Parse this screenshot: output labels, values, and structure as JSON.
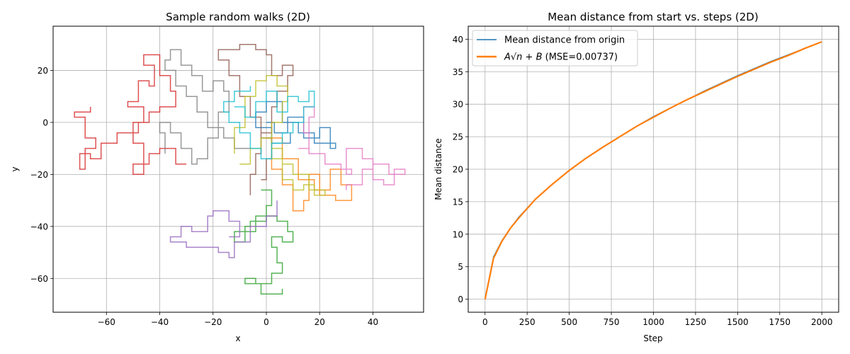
{
  "chart_data": [
    {
      "type": "line",
      "title": "Sample random walks (2D)",
      "xlabel": "x",
      "ylabel": "y",
      "xlim": [
        -80,
        59
      ],
      "ylim": [
        -73,
        37
      ],
      "xticks": [
        -60,
        -40,
        -20,
        0,
        20,
        40
      ],
      "yticks": [
        -60,
        -40,
        -20,
        0,
        20
      ],
      "grid": true,
      "series": [
        {
          "color": "#1f77b4",
          "path": [
            [
              0,
              0
            ],
            [
              3,
              -4
            ],
            [
              8,
              2
            ],
            [
              14,
              -6
            ],
            [
              20,
              -2
            ],
            [
              24,
              -10
            ],
            [
              26,
              -8
            ],
            [
              18,
              -4
            ],
            [
              12,
              0
            ],
            [
              6,
              8
            ],
            [
              0,
              4
            ],
            [
              -4,
              -2
            ],
            [
              2,
              -8
            ],
            [
              9,
              -4
            ]
          ]
        },
        {
          "color": "#ff7f0e",
          "path": [
            [
              0,
              -6
            ],
            [
              6,
              -14
            ],
            [
              12,
              -22
            ],
            [
              18,
              -26
            ],
            [
              24,
              -18
            ],
            [
              28,
              -24
            ],
            [
              32,
              -30
            ],
            [
              26,
              -28
            ],
            [
              20,
              -20
            ],
            [
              16,
              -30
            ],
            [
              14,
              -34
            ],
            [
              10,
              -24
            ],
            [
              6,
              -18
            ],
            [
              2,
              -12
            ]
          ]
        },
        {
          "color": "#2ca02c",
          "path": [
            [
              -2,
              -26
            ],
            [
              2,
              -32
            ],
            [
              0,
              -38
            ],
            [
              -6,
              -40
            ],
            [
              -8,
              -46
            ],
            [
              -12,
              -42
            ],
            [
              -4,
              -36
            ],
            [
              4,
              -38
            ],
            [
              8,
              -42
            ],
            [
              10,
              -46
            ],
            [
              6,
              -44
            ],
            [
              2,
              -48
            ],
            [
              4,
              -54
            ],
            [
              6,
              -58
            ],
            [
              2,
              -62
            ],
            [
              -4,
              -60
            ],
            [
              -8,
              -62
            ],
            [
              -2,
              -66
            ],
            [
              4,
              -66
            ],
            [
              6,
              -64
            ]
          ]
        },
        {
          "color": "#d62728",
          "path": [
            [
              -30,
              -16
            ],
            [
              -34,
              -10
            ],
            [
              -40,
              -12
            ],
            [
              -44,
              -16
            ],
            [
              -50,
              -20
            ],
            [
              -46,
              -8
            ],
            [
              -50,
              0
            ],
            [
              -46,
              6
            ],
            [
              -52,
              8
            ],
            [
              -48,
              16
            ],
            [
              -44,
              14
            ],
            [
              -42,
              22
            ],
            [
              -46,
              26
            ],
            [
              -40,
              18
            ],
            [
              -36,
              12
            ],
            [
              -34,
              6
            ],
            [
              -40,
              4
            ],
            [
              -44,
              0
            ],
            [
              -48,
              -4
            ],
            [
              -56,
              -8
            ],
            [
              -62,
              -14
            ],
            [
              -66,
              -12
            ],
            [
              -70,
              -18
            ],
            [
              -68,
              -10
            ],
            [
              -64,
              -6
            ],
            [
              -68,
              2
            ],
            [
              -72,
              4
            ],
            [
              -66,
              6
            ]
          ]
        },
        {
          "color": "#9467bd",
          "path": [
            [
              -14,
              -44
            ],
            [
              -10,
              -38
            ],
            [
              -14,
              -34
            ],
            [
              -20,
              -36
            ],
            [
              -22,
              -42
            ],
            [
              -28,
              -40
            ],
            [
              -32,
              -44
            ],
            [
              -36,
              -46
            ],
            [
              -30,
              -48
            ],
            [
              -24,
              -48
            ],
            [
              -18,
              -50
            ],
            [
              -14,
              -52
            ],
            [
              -12,
              -46
            ],
            [
              -6,
              -40
            ],
            [
              0,
              -36
            ],
            [
              4,
              -30
            ]
          ]
        },
        {
          "color": "#8c564b",
          "path": [
            [
              -2,
              -22
            ],
            [
              0,
              -14
            ],
            [
              2,
              -6
            ],
            [
              -2,
              2
            ],
            [
              -6,
              10
            ],
            [
              -10,
              18
            ],
            [
              -14,
              24
            ],
            [
              -18,
              28
            ],
            [
              -10,
              30
            ],
            [
              -4,
              28
            ],
            [
              0,
              26
            ],
            [
              2,
              18
            ],
            [
              6,
              22
            ],
            [
              10,
              18
            ],
            [
              8,
              12
            ],
            [
              4,
              6
            ],
            [
              2,
              -4
            ],
            [
              -2,
              -12
            ],
            [
              -4,
              -20
            ],
            [
              -6,
              -28
            ]
          ]
        },
        {
          "color": "#e377c2",
          "path": [
            [
              12,
              -10
            ],
            [
              16,
              -4
            ],
            [
              14,
              6
            ],
            [
              18,
              2
            ],
            [
              16,
              -12
            ],
            [
              22,
              -16
            ],
            [
              28,
              -18
            ],
            [
              32,
              -20
            ],
            [
              30,
              -10
            ],
            [
              36,
              -14
            ],
            [
              40,
              -22
            ],
            [
              44,
              -24
            ],
            [
              48,
              -18
            ],
            [
              52,
              -20
            ],
            [
              46,
              -16
            ],
            [
              40,
              -18
            ],
            [
              36,
              -24
            ],
            [
              30,
              -26
            ]
          ]
        },
        {
          "color": "#7f7f7f",
          "path": [
            [
              -6,
              -10
            ],
            [
              -12,
              -6
            ],
            [
              -16,
              -2
            ],
            [
              -22,
              4
            ],
            [
              -26,
              10
            ],
            [
              -30,
              14
            ],
            [
              -34,
              20
            ],
            [
              -38,
              24
            ],
            [
              -36,
              28
            ],
            [
              -32,
              22
            ],
            [
              -28,
              18
            ],
            [
              -24,
              12
            ],
            [
              -20,
              16
            ],
            [
              -16,
              12
            ],
            [
              -14,
              4
            ],
            [
              -18,
              -6
            ],
            [
              -22,
              -14
            ],
            [
              -26,
              -16
            ],
            [
              -28,
              -10
            ],
            [
              -32,
              -4
            ],
            [
              -36,
              0
            ],
            [
              -40,
              -4
            ],
            [
              -38,
              -12
            ]
          ]
        },
        {
          "color": "#bcbd22",
          "path": [
            [
              -10,
              -16
            ],
            [
              -6,
              -10
            ],
            [
              -2,
              -6
            ],
            [
              2,
              -14
            ],
            [
              6,
              -22
            ],
            [
              10,
              -26
            ],
            [
              14,
              -24
            ],
            [
              18,
              -28
            ],
            [
              22,
              -26
            ],
            [
              16,
              -20
            ],
            [
              10,
              -16
            ],
            [
              6,
              -10
            ],
            [
              2,
              0
            ],
            [
              6,
              8
            ],
            [
              8,
              14
            ],
            [
              4,
              18
            ],
            [
              0,
              16
            ],
            [
              -4,
              10
            ],
            [
              -8,
              -2
            ],
            [
              -12,
              -12
            ]
          ]
        },
        {
          "color": "#17becf",
          "path": [
            [
              -12,
              6
            ],
            [
              -8,
              2
            ],
            [
              -4,
              8
            ],
            [
              0,
              12
            ],
            [
              4,
              4
            ],
            [
              8,
              10
            ],
            [
              12,
              8
            ],
            [
              16,
              12
            ],
            [
              18,
              6
            ],
            [
              14,
              0
            ],
            [
              10,
              -4
            ],
            [
              6,
              -8
            ],
            [
              2,
              -14
            ],
            [
              -2,
              -10
            ],
            [
              -6,
              -4
            ],
            [
              -10,
              0
            ],
            [
              -14,
              4
            ],
            [
              -16,
              8
            ],
            [
              -12,
              12
            ],
            [
              -6,
              14
            ]
          ]
        }
      ]
    },
    {
      "type": "line",
      "title": "Mean distance from start vs. steps (2D)",
      "xlabel": "Step",
      "ylabel": "Mean distance",
      "xlim": [
        -100,
        2100
      ],
      "ylim": [
        -2,
        42
      ],
      "xticks": [
        0,
        250,
        500,
        750,
        1000,
        1250,
        1500,
        1750,
        2000
      ],
      "yticks": [
        0,
        5,
        10,
        15,
        20,
        25,
        30,
        35,
        40
      ],
      "grid": true,
      "legend_position": "top-left",
      "series": [
        {
          "name": "Mean distance from origin",
          "color": "#1f77b4",
          "x": [
            0,
            50,
            100,
            150,
            200,
            300,
            400,
            500,
            600,
            700,
            800,
            900,
            1000,
            1100,
            1200,
            1300,
            1400,
            1500,
            1600,
            1700,
            1800,
            1900,
            2000
          ],
          "y": [
            0,
            6.5,
            9.0,
            10.9,
            12.6,
            15.4,
            17.7,
            19.8,
            21.7,
            23.4,
            25.0,
            26.6,
            28.1,
            29.4,
            30.7,
            32.0,
            33.2,
            34.4,
            35.5,
            36.6,
            37.6,
            38.6,
            39.6
          ]
        },
        {
          "name": "A√n + B (MSE=0.00737)",
          "color": "#ff7f0e",
          "x": [
            0,
            50,
            100,
            150,
            200,
            300,
            400,
            500,
            600,
            700,
            800,
            900,
            1000,
            1100,
            1200,
            1300,
            1400,
            1500,
            1600,
            1700,
            1800,
            1900,
            2000
          ],
          "y": [
            0,
            6.3,
            8.9,
            10.9,
            12.5,
            15.4,
            17.7,
            19.8,
            21.7,
            23.4,
            25.0,
            26.6,
            28.0,
            29.4,
            30.7,
            31.9,
            33.1,
            34.3,
            35.4,
            36.5,
            37.5,
            38.6,
            39.6
          ]
        }
      ],
      "legend": [
        {
          "label": "Mean distance from origin"
        },
        {
          "label_main": "A√n + B",
          "label_suffix": " (MSE=0.00737)"
        }
      ]
    }
  ]
}
